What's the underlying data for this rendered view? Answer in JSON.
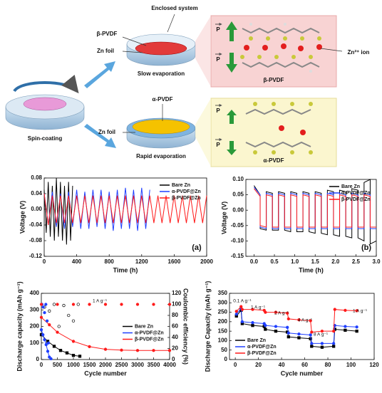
{
  "diagram": {
    "spin_label": "Spin-coating",
    "enclosed_label": "Enclosed system",
    "slow": {
      "film": "β-PVDF",
      "foil": "Zn foil",
      "process": "Slow evaporation",
      "panel_title": "β-PVDF",
      "p_labels": [
        "P",
        "P"
      ],
      "ion_label": "Zn²⁺ ion"
    },
    "rapid": {
      "film": "α-PVDF",
      "foil": "Zn foil",
      "process": "Rapid evaporation",
      "panel_title": "α-PVDF",
      "p_labels": [
        "P",
        "P"
      ]
    }
  },
  "chart_data": [
    {
      "type": "line",
      "panel_label": "(a)",
      "xlabel": "Time (h)",
      "ylabel": "Voltage (V)",
      "xlim": [
        0,
        2000
      ],
      "xticks": [
        0,
        400,
        800,
        1200,
        1600,
        2000
      ],
      "ylim": [
        -0.12,
        0.08
      ],
      "yticks": [
        -0.12,
        -0.08,
        -0.04,
        {
          "value": 0,
          "label": "0.00"
        },
        0.04,
        0.08
      ],
      "legend": "upper right",
      "series": [
        {
          "name": "Bare Zn",
          "color": "#000000",
          "x": [
            0,
            25,
            50,
            75,
            100,
            125,
            150,
            175,
            200,
            225,
            250,
            275,
            300,
            325,
            350
          ],
          "values": [
            0.05,
            -0.06,
            0.07,
            -0.07,
            0.06,
            -0.08,
            0.08,
            -0.07,
            0.07,
            -0.08,
            0.06,
            -0.09,
            0.07,
            -0.08,
            0.06
          ]
        },
        {
          "name": "α-PVDF@Zn",
          "color": "#1f3fff",
          "x": [
            0,
            50,
            100,
            150,
            200,
            250,
            300,
            350,
            400,
            450,
            500,
            550,
            600,
            650,
            700,
            750,
            800,
            850,
            900,
            950,
            1000,
            1050,
            1100,
            1150,
            1200,
            1250,
            1300
          ],
          "values": [
            0.04,
            -0.04,
            0.045,
            -0.045,
            0.04,
            -0.05,
            0.045,
            -0.045,
            0.05,
            -0.05,
            0.045,
            -0.05,
            0.05,
            -0.045,
            0.05,
            -0.05,
            0.045,
            -0.055,
            0.05,
            -0.05,
            0.055,
            -0.05,
            0.05,
            -0.055,
            0.055,
            -0.05,
            0.05
          ]
        },
        {
          "name": "β-PVDF@Zn",
          "color": "#ff1a1a",
          "x": [
            0,
            50,
            100,
            150,
            200,
            250,
            300,
            350,
            400,
            450,
            500,
            550,
            600,
            650,
            700,
            750,
            800,
            850,
            900,
            950,
            1000,
            1050,
            1100,
            1150,
            1200,
            1250,
            1300,
            1350,
            1400,
            1450,
            1500,
            1550,
            1600,
            1650,
            1700,
            1750,
            1800,
            1850,
            1900,
            1950,
            2000
          ],
          "values": [
            0.04,
            -0.04,
            0.035,
            -0.035,
            0.035,
            -0.035,
            0.035,
            -0.035,
            0.035,
            -0.035,
            0.035,
            -0.035,
            0.035,
            -0.035,
            0.035,
            -0.035,
            0.035,
            -0.035,
            0.035,
            -0.035,
            0.035,
            -0.035,
            0.035,
            -0.035,
            0.035,
            -0.035,
            0.035,
            -0.035,
            0.035,
            -0.035,
            0.035,
            -0.035,
            0.035,
            -0.035,
            0.035,
            -0.035,
            0.035,
            -0.035,
            0.035,
            -0.035,
            0.035
          ]
        }
      ]
    },
    {
      "type": "line",
      "panel_label": "(b)",
      "xlabel": "Time (h)",
      "ylabel": "Voltage (V)",
      "xlim": [
        -0.2,
        3.0
      ],
      "xticks": [
        {
          "value": 0,
          "label": "0.0"
        },
        0.5,
        {
          "value": 1,
          "label": "1.0"
        },
        1.5,
        {
          "value": 2,
          "label": "2.0"
        },
        2.5,
        {
          "value": 3,
          "label": "3.0"
        }
      ],
      "ylim": [
        -0.15,
        0.1
      ],
      "yticks": [
        -0.15,
        {
          "value": -0.1,
          "label": "-0.10"
        },
        -0.05,
        {
          "value": 0,
          "label": "0.00"
        },
        0.05,
        {
          "value": 0.1,
          "label": "0.10"
        }
      ],
      "legend": "upper right",
      "x": [
        0,
        0.15,
        0.15,
        0.3,
        0.3,
        0.45,
        0.45,
        0.6,
        0.6,
        0.75,
        0.75,
        0.9,
        0.9,
        1.05,
        1.05,
        1.2,
        1.2,
        1.35,
        1.35,
        1.5,
        1.5,
        1.65,
        1.65,
        1.8,
        1.8,
        1.95,
        1.95,
        2.1,
        2.1,
        2.25,
        2.25,
        2.4,
        2.4,
        2.55,
        2.55,
        2.7,
        2.7,
        2.85,
        2.85,
        3.0
      ],
      "series": [
        {
          "name": "Bare Zn",
          "color": "#000000",
          "values": [
            0.08,
            0.05,
            -0.06,
            -0.065,
            0.06,
            0.055,
            -0.065,
            -0.065,
            0.06,
            0.055,
            -0.065,
            -0.07,
            0.06,
            0.055,
            -0.07,
            -0.07,
            0.06,
            0.055,
            -0.07,
            -0.075,
            0.06,
            0.055,
            -0.075,
            -0.08,
            0.065,
            0.06,
            -0.08,
            -0.085,
            0.065,
            0.06,
            -0.085,
            -0.09,
            0.07,
            0.065,
            -0.09,
            -0.1,
            0.09,
            0.1,
            -0.11,
            -0.1
          ]
        },
        {
          "name": "α-PVDF@Zn",
          "color": "#1f3fff",
          "values": [
            0.075,
            0.05,
            -0.055,
            -0.06,
            0.055,
            0.05,
            -0.06,
            -0.06,
            0.055,
            0.05,
            -0.06,
            -0.06,
            0.055,
            0.05,
            -0.06,
            -0.06,
            0.055,
            0.05,
            -0.06,
            -0.06,
            0.055,
            0.05,
            -0.06,
            -0.06,
            0.055,
            0.05,
            -0.06,
            -0.06,
            0.055,
            0.05,
            -0.06,
            -0.06,
            0.055,
            0.05,
            -0.06,
            -0.06,
            0.055,
            0.05,
            -0.06,
            -0.06
          ]
        },
        {
          "name": "β-PVDF@Zn",
          "color": "#ff1a1a",
          "values": [
            0.07,
            0.045,
            -0.05,
            -0.055,
            0.05,
            0.045,
            -0.055,
            -0.055,
            0.05,
            0.045,
            -0.055,
            -0.055,
            0.05,
            0.045,
            -0.055,
            -0.055,
            0.05,
            0.045,
            -0.055,
            -0.055,
            0.05,
            0.045,
            -0.055,
            -0.055,
            0.05,
            0.045,
            -0.055,
            -0.055,
            0.05,
            0.045,
            -0.055,
            -0.055,
            0.05,
            0.045,
            -0.055,
            -0.055,
            0.05,
            0.045,
            -0.055,
            -0.055
          ]
        }
      ]
    },
    {
      "type": "line",
      "xlabel": "Cycle number",
      "ylabel": "Discharge capacity (mAh g⁻¹)",
      "y2label": "Coulombic efficiency (%)",
      "annotations": [
        "1 A g⁻¹"
      ],
      "xlim": [
        0,
        4000
      ],
      "xticks": [
        0,
        500,
        1000,
        1500,
        2000,
        2500,
        3000,
        3500,
        4000
      ],
      "ylim": [
        0,
        400
      ],
      "yticks": [
        0,
        100,
        200,
        300,
        400
      ],
      "y2lim": [
        0,
        120
      ],
      "y2ticks": [
        0,
        20,
        40,
        60,
        80,
        100,
        120
      ],
      "legend": "center right",
      "series": [
        {
          "name": "Bare Zn",
          "color": "#000000",
          "marker": "square",
          "x": [
            0,
            200,
            400,
            600,
            800,
            1000,
            1200
          ],
          "values": [
            150,
            110,
            80,
            55,
            40,
            25,
            20
          ]
        },
        {
          "name": "α-PVDF@Zn",
          "color": "#1f3fff",
          "marker": "circle",
          "x": [
            0,
            50,
            100,
            150,
            200,
            250,
            300
          ],
          "values": [
            180,
            150,
            120,
            90,
            50,
            15,
            5
          ]
        },
        {
          "name": "β-PVDF@Zn",
          "color": "#ff1a1a",
          "marker": "circle",
          "x": [
            0,
            250,
            500,
            1000,
            1500,
            2000,
            2500,
            3000,
            3500,
            4000
          ],
          "values": [
            255,
            210,
            165,
            110,
            78,
            62,
            57,
            55,
            55,
            55
          ]
        },
        {
          "color": "#000000",
          "axis": "y2",
          "mode": "markers",
          "marker": "circle",
          "open": true,
          "x": [
            100,
            250,
            400,
            550,
            700,
            850,
            1000,
            1150
          ],
          "values": [
            95,
            88,
            100,
            60,
            98,
            80,
            70,
            100
          ]
        },
        {
          "color": "#1f3fff",
          "axis": "y2",
          "mode": "markers",
          "marker": "circle",
          "x": [
            20,
            60,
            100,
            140,
            180,
            220
          ],
          "values": [
            100,
            95,
            85,
            100,
            70,
            30
          ]
        },
        {
          "color": "#ff1a1a",
          "axis": "y2",
          "mode": "markers",
          "marker": "circle",
          "x": [
            0,
            500,
            1000,
            1500,
            2000,
            2500,
            3000,
            3500,
            4000
          ],
          "values": [
            100,
            100,
            100,
            100,
            100,
            100,
            100,
            100,
            100
          ]
        }
      ]
    },
    {
      "type": "line",
      "xlabel": "Cycle number",
      "ylabel": "Discharge Capacity (mAh g⁻¹)",
      "annotations": [
        "0.1 A g⁻¹",
        "1 A g⁻¹",
        "2 A g⁻¹",
        "4 A g⁻¹",
        "8 A g⁻¹",
        "1 A g⁻¹"
      ],
      "xlim": [
        -5,
        120
      ],
      "xticks": [
        0,
        20,
        40,
        60,
        80,
        100,
        120
      ],
      "ylim": [
        0,
        350
      ],
      "yticks": [
        0,
        50,
        100,
        150,
        200,
        250,
        300,
        350
      ],
      "legend": "lower left",
      "x": [
        1,
        5,
        6,
        15,
        25,
        26,
        35,
        45,
        46,
        55,
        65,
        66,
        75,
        85,
        86,
        95,
        105
      ],
      "series": [
        {
          "name": "Bare Zn",
          "color": "#000000",
          "marker": "square",
          "values": [
            230,
            260,
            190,
            180,
            175,
            160,
            150,
            145,
            120,
            115,
            110,
            70,
            65,
            70,
            160,
            155,
            150
          ]
        },
        {
          "name": "α-PVDF@Zn",
          "color": "#1f3fff",
          "marker": "circle",
          "values": [
            240,
            270,
            200,
            195,
            190,
            180,
            175,
            170,
            140,
            135,
            130,
            85,
            85,
            85,
            180,
            175,
            172
          ]
        },
        {
          "name": "β-PVDF@Zn",
          "color": "#ff1a1a",
          "marker": "circle",
          "values": [
            255,
            280,
            265,
            265,
            260,
            250,
            250,
            245,
            215,
            210,
            205,
            145,
            150,
            150,
            265,
            260,
            258
          ]
        }
      ]
    }
  ]
}
